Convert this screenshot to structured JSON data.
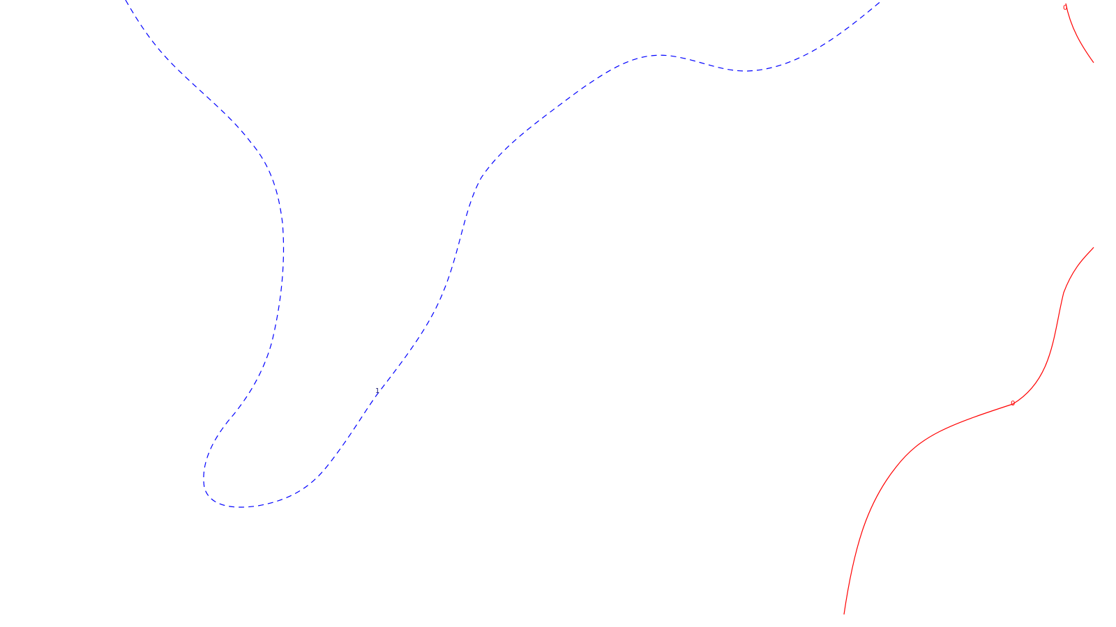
{
  "map": {
    "background": "#ffffff",
    "contours": [
      {
        "id": "dashed-contour",
        "level_label": "1",
        "style": "dashed",
        "color": "#0000ff"
      },
      {
        "id": "solid-contour-lower",
        "level_label": "0",
        "style": "solid",
        "color": "#ff0000"
      },
      {
        "id": "solid-contour-upper",
        "level_label": "0",
        "style": "solid",
        "color": "#ff0000"
      }
    ]
  }
}
